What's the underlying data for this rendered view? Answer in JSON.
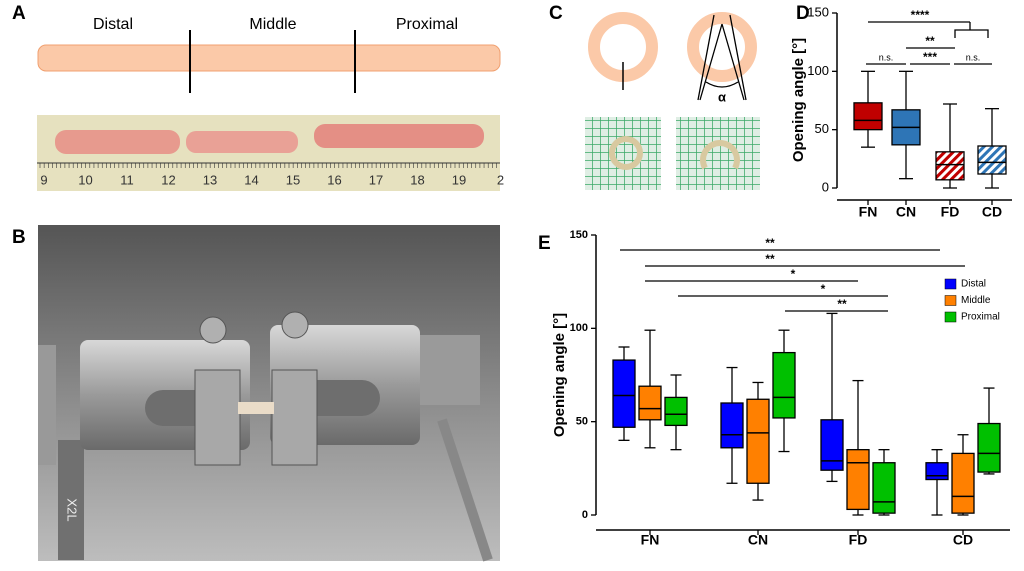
{
  "panels": {
    "a": {
      "label": "A",
      "segments": [
        "Distal",
        "Middle",
        "Proximal"
      ],
      "ruler": [
        "9",
        "10",
        "11",
        "12",
        "13",
        "14",
        "15",
        "16",
        "17",
        "18",
        "19",
        "2"
      ]
    },
    "b": {
      "label": "B",
      "sensor": "X2L"
    },
    "c": {
      "label": "C",
      "angle": "α"
    },
    "d": {
      "label": "D"
    },
    "e": {
      "label": "E"
    }
  },
  "chart_data": [
    {
      "type": "box",
      "y_label": "Opening angle [°]",
      "categories": [
        "FN",
        "CN",
        "FD",
        "CD"
      ],
      "ylim": [
        0,
        150
      ],
      "yticks": [
        0,
        50,
        100,
        150
      ],
      "colors": [
        "#c00000",
        "#2e75b6",
        "#c00000",
        "#2e75b6"
      ],
      "hatched": [
        false,
        false,
        true,
        true
      ],
      "boxes": [
        {
          "min": 35,
          "q1": 50,
          "median": 58,
          "q3": 73,
          "max": 100
        },
        {
          "min": 8,
          "q1": 37,
          "median": 52,
          "q3": 67,
          "max": 100
        },
        {
          "min": 0,
          "q1": 7,
          "median": 20,
          "q3": 31,
          "max": 72
        },
        {
          "min": 0,
          "q1": 12,
          "median": 22,
          "q3": 36,
          "max": 68
        }
      ],
      "significance": [
        "****",
        "**",
        "n.s.",
        "***",
        "n.s."
      ]
    },
    {
      "type": "box",
      "y_label": "Opening angle [°]",
      "categories": [
        "FN",
        "CN",
        "FD",
        "CD"
      ],
      "ylim": [
        0,
        150
      ],
      "yticks": [
        0,
        50,
        100,
        150
      ],
      "legend": "upper right",
      "series": [
        {
          "name": "Distal",
          "color": "#0000ff",
          "boxes": [
            {
              "min": 40,
              "q1": 47,
              "median": 64,
              "q3": 83,
              "max": 90
            },
            {
              "min": 17,
              "q1": 36,
              "median": 43,
              "q3": 60,
              "max": 79
            },
            {
              "min": 18,
              "q1": 24,
              "median": 29,
              "q3": 51,
              "max": 108
            },
            {
              "min": 0,
              "q1": 19,
              "median": 21,
              "q3": 28,
              "max": 35
            }
          ]
        },
        {
          "name": "Middle",
          "color": "#ff8000",
          "boxes": [
            {
              "min": 36,
              "q1": 51,
              "median": 57,
              "q3": 69,
              "max": 99
            },
            {
              "min": 8,
              "q1": 17,
              "median": 44,
              "q3": 62,
              "max": 71
            },
            {
              "min": 0,
              "q1": 3,
              "median": 28,
              "q3": 35,
              "max": 72
            },
            {
              "min": 0,
              "q1": 1,
              "median": 10,
              "q3": 33,
              "max": 43
            }
          ]
        },
        {
          "name": "Proximal",
          "color": "#00c000",
          "boxes": [
            {
              "min": 35,
              "q1": 48,
              "median": 54,
              "q3": 63,
              "max": 75
            },
            {
              "min": 34,
              "q1": 52,
              "median": 63,
              "q3": 87,
              "max": 99
            },
            {
              "min": 0,
              "q1": 1,
              "median": 7,
              "q3": 28,
              "max": 35
            },
            {
              "min": 22,
              "q1": 23,
              "median": 33,
              "q3": 49,
              "max": 68
            }
          ]
        }
      ],
      "significance": [
        "**",
        "**",
        "*",
        "*",
        "**"
      ]
    }
  ]
}
